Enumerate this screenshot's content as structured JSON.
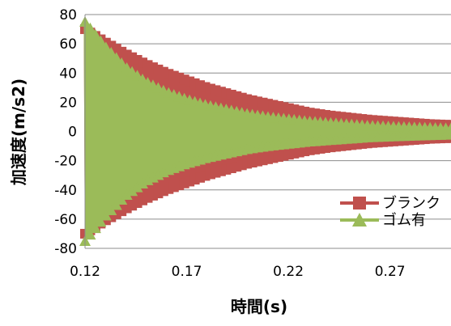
{
  "chart_data": {
    "type": "line",
    "title": "",
    "xlabel": "時間(s)",
    "ylabel": "加速度(m/s2)",
    "xlim": [
      0.12,
      0.3
    ],
    "ylim": [
      -80,
      80
    ],
    "x_ticks": [
      0.12,
      0.17,
      0.22,
      0.27
    ],
    "x_tick_labels": [
      "0.12",
      "0.17",
      "0.22",
      "0.27"
    ],
    "y_ticks": [
      -80,
      -60,
      -40,
      -20,
      0,
      20,
      40,
      60,
      80
    ],
    "y_tick_labels": [
      "-80",
      "-60",
      "-40",
      "-20",
      "0",
      "20",
      "40",
      "60",
      "80"
    ],
    "grid": "horizontal",
    "legend_position": "right",
    "series": [
      {
        "name": "ブランク",
        "color": "#c0504d",
        "marker": "square",
        "x": [
          0.12,
          0.13,
          0.14,
          0.15,
          0.16,
          0.17,
          0.18,
          0.19,
          0.2,
          0.21,
          0.22,
          0.23,
          0.24,
          0.25,
          0.26,
          0.27,
          0.28,
          0.29,
          0.3
        ],
        "envelope": [
          70,
          61,
          53,
          46,
          40,
          35,
          30,
          26,
          22,
          19,
          16,
          13,
          11,
          9.5,
          8,
          7,
          6,
          5,
          4.5
        ]
      },
      {
        "name": "ゴム有",
        "color": "#9bbb59",
        "marker": "triangle",
        "x": [
          0.12,
          0.13,
          0.14,
          0.15,
          0.16,
          0.17,
          0.18,
          0.19,
          0.2,
          0.21,
          0.22,
          0.23,
          0.24,
          0.25,
          0.26,
          0.27,
          0.28,
          0.29,
          0.3
        ],
        "envelope": [
          75,
          58,
          44,
          34,
          27,
          22,
          18,
          15,
          12,
          10,
          8.5,
          7,
          6,
          5,
          4,
          3.5,
          3,
          2.6,
          2.2
        ]
      }
    ]
  }
}
